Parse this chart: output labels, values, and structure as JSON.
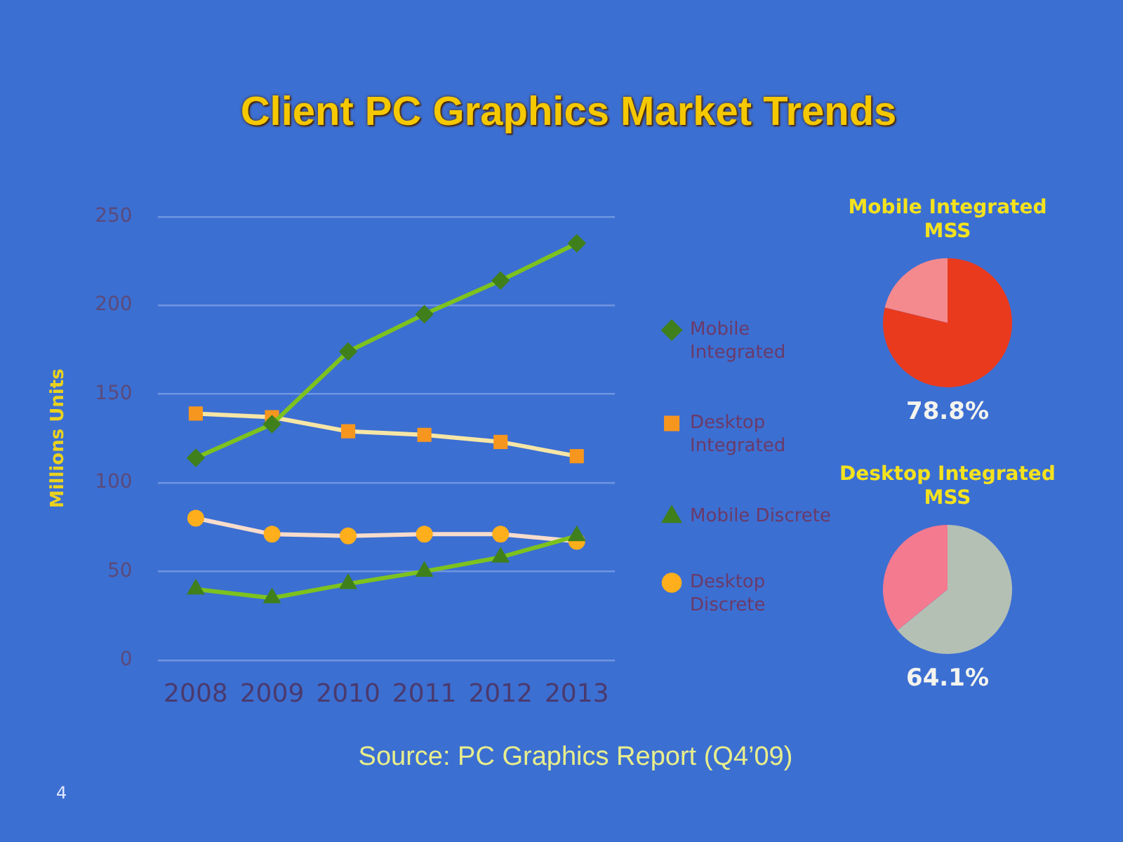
{
  "chart_data": [
    {
      "type": "line",
      "title": "Client PC Graphics Market Trends",
      "ylabel": "Millions Units",
      "categories": [
        "2008",
        "2009",
        "2010",
        "2011",
        "2012",
        "2013"
      ],
      "series": [
        {
          "name": "Mobile Integrated",
          "color": "#7dc21e",
          "colors": [
            "#3f7f1c",
            "#3f7f1c",
            "#3f7f1c",
            "#3f7f1c",
            "#3f7f1c",
            "#3f7f1c"
          ],
          "marker": "diamond",
          "values": [
            114,
            133,
            174,
            195,
            214,
            235
          ]
        },
        {
          "name": "Desktop Integrated",
          "color": "#f6e6a6",
          "colors": [
            "#f7961e",
            "#f7961e",
            "#f7961e",
            "#f7961e",
            "#f7961e",
            "#f7961e"
          ],
          "marker": "square",
          "values": [
            139,
            137,
            129,
            127,
            123,
            115
          ]
        },
        {
          "name": "Mobile Discrete",
          "color": "#7dc21e",
          "colors": [
            "#3f7f1c",
            "#3f7f1c",
            "#3f7f1c",
            "#3f7f1c",
            "#3f7f1c",
            "#3f7f1c"
          ],
          "marker": "triangle",
          "values": [
            40,
            35,
            43,
            50,
            58,
            70
          ]
        },
        {
          "name": "Desktop Discrete",
          "color": "#f8dccb",
          "colors": [
            "#ffae1c",
            "#ffae1c",
            "#ffae1c",
            "#ffae1c",
            "#ffae1c",
            "#ffae1c"
          ],
          "marker": "circle",
          "values": [
            80,
            71,
            70,
            71,
            71,
            67
          ]
        }
      ],
      "ylim": [
        0,
        250
      ],
      "yticks": [
        0,
        50,
        100,
        150,
        200,
        250
      ],
      "grid": "y",
      "legend": "right",
      "annotations": [
        "Source: PC Graphics Report (Q4’09)",
        "4"
      ]
    },
    {
      "type": "pie",
      "title": "Mobile Integrated MSS",
      "categories": [
        null,
        null
      ],
      "values": [
        78.8,
        21.2
      ],
      "colors": [
        "#ea3a1e",
        "#f58a8e"
      ],
      "value_labels": [
        "78.8%",
        null
      ]
    },
    {
      "type": "pie",
      "title": "Desktop Integrated MSS",
      "categories": [
        null,
        null
      ],
      "values": [
        64.1,
        35.9
      ],
      "colors": [
        "#b4c0b4",
        "#f47a90"
      ],
      "value_labels": [
        "64.1%",
        null
      ]
    }
  ]
}
